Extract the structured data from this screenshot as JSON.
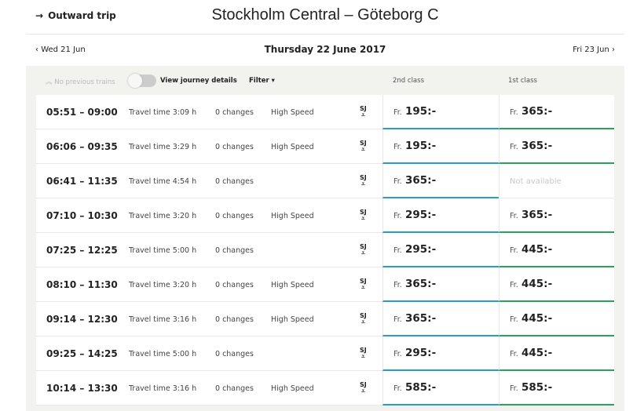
{
  "header": {
    "outward_label": "Outward trip",
    "route_title": "Stockholm Central – Göteborg C"
  },
  "date_nav": {
    "prev": "Wed 21 Jun",
    "current": "Thursday 22 June 2017",
    "next": "Fri 23 Jun"
  },
  "toolbar": {
    "no_previous": "No previous trains",
    "view_details": "View journey details",
    "view_details_on": false,
    "filter": "Filter ▾",
    "col_2nd": "2nd class",
    "col_1st": "1st class"
  },
  "colors": {
    "second_class": "#2a9bd0",
    "first_class": "#2aa35a",
    "panel_bg": "#f2f2ee"
  },
  "operator_icon": "sj-logo-icon",
  "price_prefix": "Fr.",
  "journeys": [
    {
      "time": "05:51 – 09:00",
      "travel": "Travel time 3:09 h",
      "changes": "0 changes",
      "type": "High Speed",
      "second": "195:-",
      "first": "365:-"
    },
    {
      "time": "06:06 – 09:35",
      "travel": "Travel time 3:29 h",
      "changes": "0 changes",
      "type": "High Speed",
      "second": "195:-",
      "first": "365:-"
    },
    {
      "time": "06:41 – 11:35",
      "travel": "Travel time 4:54 h",
      "changes": "0 changes",
      "type": "",
      "second": "365:-",
      "first": null,
      "first_na": "Not available"
    },
    {
      "time": "07:10 – 10:30",
      "travel": "Travel time 3:20 h",
      "changes": "0 changes",
      "type": "High Speed",
      "second": "295:-",
      "first": "365:-"
    },
    {
      "time": "07:25 – 12:25",
      "travel": "Travel time 5:00 h",
      "changes": "0 changes",
      "type": "",
      "second": "295:-",
      "first": "445:-"
    },
    {
      "time": "08:10 – 11:30",
      "travel": "Travel time 3:20 h",
      "changes": "0 changes",
      "type": "High Speed",
      "second": "365:-",
      "first": "445:-"
    },
    {
      "time": "09:14 – 12:30",
      "travel": "Travel time 3:16 h",
      "changes": "0 changes",
      "type": "High Speed",
      "second": "365:-",
      "first": "445:-"
    },
    {
      "time": "09:25 – 14:25",
      "travel": "Travel time 5:00 h",
      "changes": "0 changes",
      "type": "",
      "second": "295:-",
      "first": "445:-"
    },
    {
      "time": "10:14 – 13:30",
      "travel": "Travel time 3:16 h",
      "changes": "0 changes",
      "type": "High Speed",
      "second": "585:-",
      "first": "585:-"
    }
  ]
}
